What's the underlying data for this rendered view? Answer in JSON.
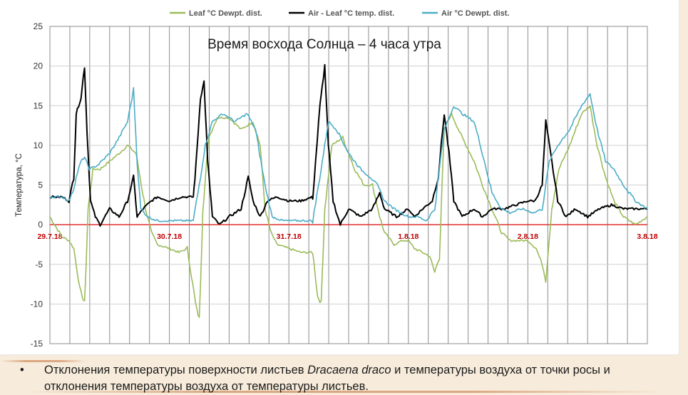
{
  "chart_data": {
    "type": "line",
    "annotation": "Время восхода Солнца – 4 часа утра",
    "ylabel": "Температура, °C",
    "ylim": [
      -15,
      25
    ],
    "yticks": [
      -15,
      -10,
      -5,
      0,
      5,
      10,
      15,
      20,
      25
    ],
    "xlim": [
      0,
      5
    ],
    "date_labels": [
      {
        "x": 0,
        "label": "29.7.18"
      },
      {
        "x": 1,
        "label": "30.7.18"
      },
      {
        "x": 2,
        "label": "31.7.18"
      },
      {
        "x": 3,
        "label": "1.8.18"
      },
      {
        "x": 4,
        "label": "2.8.18"
      },
      {
        "x": 5,
        "label": "3.8.18"
      }
    ],
    "grid": "vertical every 2 h (4 h markers), horizontal at y ticks",
    "legend_position": "top",
    "series": [
      {
        "name": "Leaf °C Dewpt. dist.",
        "color": "#9bbb59",
        "points": [
          [
            0,
            1
          ],
          [
            0.1,
            -1.5
          ],
          [
            0.16,
            -2
          ],
          [
            0.2,
            -3
          ],
          [
            0.25,
            -8
          ],
          [
            0.29,
            -10
          ],
          [
            0.32,
            2
          ],
          [
            0.36,
            7
          ],
          [
            0.42,
            7
          ],
          [
            0.5,
            8
          ],
          [
            0.58,
            9
          ],
          [
            0.65,
            10
          ],
          [
            0.72,
            9
          ],
          [
            0.8,
            2
          ],
          [
            0.85,
            -1
          ],
          [
            0.9,
            -2.5
          ],
          [
            1.0,
            -3
          ],
          [
            1.08,
            -3.5
          ],
          [
            1.15,
            -3
          ],
          [
            1.22,
            -10
          ],
          [
            1.25,
            -12
          ],
          [
            1.28,
            2
          ],
          [
            1.33,
            11
          ],
          [
            1.4,
            13.5
          ],
          [
            1.5,
            13.5
          ],
          [
            1.6,
            12
          ],
          [
            1.7,
            13
          ],
          [
            1.76,
            10
          ],
          [
            1.8,
            2
          ],
          [
            1.85,
            -1
          ],
          [
            1.9,
            -2.5
          ],
          [
            2.0,
            -3
          ],
          [
            2.1,
            -3.5
          ],
          [
            2.2,
            -3.5
          ],
          [
            2.24,
            -9
          ],
          [
            2.27,
            -10
          ],
          [
            2.3,
            2
          ],
          [
            2.36,
            10
          ],
          [
            2.45,
            11
          ],
          [
            2.55,
            7
          ],
          [
            2.63,
            5
          ],
          [
            2.7,
            5
          ],
          [
            2.76,
            1
          ],
          [
            2.8,
            -1
          ],
          [
            2.88,
            -2.5
          ],
          [
            2.95,
            -2
          ],
          [
            3.0,
            -2
          ],
          [
            3.05,
            -3
          ],
          [
            3.12,
            -3.5
          ],
          [
            3.18,
            -4
          ],
          [
            3.22,
            -6
          ],
          [
            3.26,
            -4
          ],
          [
            3.3,
            12
          ],
          [
            3.36,
            14
          ],
          [
            3.45,
            11
          ],
          [
            3.55,
            8
          ],
          [
            3.62,
            5
          ],
          [
            3.7,
            2
          ],
          [
            3.78,
            -1
          ],
          [
            3.85,
            -2
          ],
          [
            3.92,
            -2
          ],
          [
            4.0,
            -2
          ],
          [
            4.07,
            -3
          ],
          [
            4.12,
            -5
          ],
          [
            4.15,
            -7
          ],
          [
            4.2,
            2
          ],
          [
            4.26,
            7
          ],
          [
            4.35,
            10
          ],
          [
            4.45,
            14
          ],
          [
            4.52,
            15
          ],
          [
            4.58,
            10
          ],
          [
            4.65,
            6
          ],
          [
            4.72,
            3
          ],
          [
            4.8,
            1
          ],
          [
            4.9,
            0
          ],
          [
            5.0,
            1
          ]
        ]
      },
      {
        "name": "Air - Leaf °C temp. dist.",
        "color": "#000000",
        "points": [
          [
            0,
            3.5
          ],
          [
            0.1,
            3.5
          ],
          [
            0.16,
            3
          ],
          [
            0.2,
            6
          ],
          [
            0.22,
            14
          ],
          [
            0.26,
            16
          ],
          [
            0.29,
            20
          ],
          [
            0.31,
            12
          ],
          [
            0.34,
            3
          ],
          [
            0.38,
            1
          ],
          [
            0.42,
            0
          ],
          [
            0.5,
            2
          ],
          [
            0.58,
            1
          ],
          [
            0.65,
            3
          ],
          [
            0.7,
            6
          ],
          [
            0.73,
            1
          ],
          [
            0.78,
            2
          ],
          [
            0.85,
            3
          ],
          [
            0.9,
            3.5
          ],
          [
            1.0,
            3
          ],
          [
            1.1,
            3.5
          ],
          [
            1.2,
            3.5
          ],
          [
            1.22,
            7
          ],
          [
            1.26,
            16
          ],
          [
            1.29,
            18
          ],
          [
            1.32,
            8
          ],
          [
            1.36,
            1
          ],
          [
            1.42,
            0
          ],
          [
            1.5,
            1
          ],
          [
            1.6,
            2
          ],
          [
            1.66,
            6
          ],
          [
            1.7,
            3
          ],
          [
            1.76,
            1
          ],
          [
            1.82,
            3
          ],
          [
            1.9,
            3.5
          ],
          [
            2.0,
            3
          ],
          [
            2.1,
            3
          ],
          [
            2.2,
            3.5
          ],
          [
            2.26,
            15
          ],
          [
            2.3,
            20
          ],
          [
            2.33,
            10
          ],
          [
            2.37,
            3
          ],
          [
            2.43,
            0
          ],
          [
            2.5,
            2
          ],
          [
            2.6,
            1
          ],
          [
            2.7,
            2
          ],
          [
            2.76,
            4
          ],
          [
            2.8,
            2
          ],
          [
            2.9,
            1
          ],
          [
            3.0,
            2
          ],
          [
            3.05,
            1
          ],
          [
            3.12,
            2
          ],
          [
            3.2,
            3
          ],
          [
            3.25,
            6
          ],
          [
            3.3,
            14
          ],
          [
            3.34,
            9
          ],
          [
            3.38,
            3
          ],
          [
            3.45,
            1
          ],
          [
            3.55,
            2
          ],
          [
            3.62,
            1
          ],
          [
            3.7,
            2
          ],
          [
            3.8,
            2
          ],
          [
            3.9,
            2.5
          ],
          [
            4.0,
            3
          ],
          [
            4.06,
            3
          ],
          [
            4.12,
            5
          ],
          [
            4.15,
            13
          ],
          [
            4.2,
            8
          ],
          [
            4.25,
            3
          ],
          [
            4.32,
            1
          ],
          [
            4.4,
            2
          ],
          [
            4.5,
            1
          ],
          [
            4.6,
            2
          ],
          [
            4.7,
            2.5
          ],
          [
            4.8,
            2
          ],
          [
            4.9,
            2
          ],
          [
            5.0,
            2
          ]
        ]
      },
      {
        "name": "Air °C Dewpt. dist.",
        "color": "#4bacc6",
        "points": [
          [
            0,
            3.5
          ],
          [
            0.1,
            3.5
          ],
          [
            0.16,
            3
          ],
          [
            0.2,
            4.5
          ],
          [
            0.22,
            6
          ],
          [
            0.26,
            8
          ],
          [
            0.29,
            8.5
          ],
          [
            0.33,
            7
          ],
          [
            0.4,
            7.5
          ],
          [
            0.5,
            9
          ],
          [
            0.58,
            11
          ],
          [
            0.65,
            13
          ],
          [
            0.7,
            17
          ],
          [
            0.73,
            8
          ],
          [
            0.76,
            2
          ],
          [
            0.82,
            1
          ],
          [
            0.9,
            0.5
          ],
          [
            1.0,
            0.5
          ],
          [
            1.1,
            0.5
          ],
          [
            1.2,
            0.5
          ],
          [
            1.26,
            6
          ],
          [
            1.3,
            10
          ],
          [
            1.36,
            13
          ],
          [
            1.45,
            14
          ],
          [
            1.55,
            13
          ],
          [
            1.65,
            14
          ],
          [
            1.72,
            12
          ],
          [
            1.8,
            5
          ],
          [
            1.86,
            1
          ],
          [
            1.95,
            0.5
          ],
          [
            2.1,
            0.5
          ],
          [
            2.2,
            0.5
          ],
          [
            2.28,
            8
          ],
          [
            2.33,
            13
          ],
          [
            2.4,
            12
          ],
          [
            2.5,
            9
          ],
          [
            2.6,
            7
          ],
          [
            2.68,
            6
          ],
          [
            2.74,
            5
          ],
          [
            2.8,
            3
          ],
          [
            2.88,
            2
          ],
          [
            3.0,
            1
          ],
          [
            3.08,
            1
          ],
          [
            3.15,
            0.5
          ],
          [
            3.22,
            2
          ],
          [
            3.3,
            12
          ],
          [
            3.38,
            15
          ],
          [
            3.45,
            14
          ],
          [
            3.55,
            13
          ],
          [
            3.62,
            9
          ],
          [
            3.7,
            4
          ],
          [
            3.78,
            2
          ],
          [
            3.85,
            1.5
          ],
          [
            3.95,
            2
          ],
          [
            4.05,
            1.5
          ],
          [
            4.12,
            2
          ],
          [
            4.18,
            8
          ],
          [
            4.25,
            10
          ],
          [
            4.35,
            12
          ],
          [
            4.45,
            15
          ],
          [
            4.52,
            16.5
          ],
          [
            4.58,
            12
          ],
          [
            4.65,
            8
          ],
          [
            4.72,
            7
          ],
          [
            4.8,
            5
          ],
          [
            4.9,
            3
          ],
          [
            5.0,
            2
          ]
        ]
      }
    ]
  },
  "caption": {
    "bullet": "•",
    "part1": "Отклонения температуры поверхности листьев ",
    "species": "Dracaena draco",
    "part2": " и температуры воздуха от точки росы и отклонения  температуры воздуха от  температуры листьев."
  }
}
